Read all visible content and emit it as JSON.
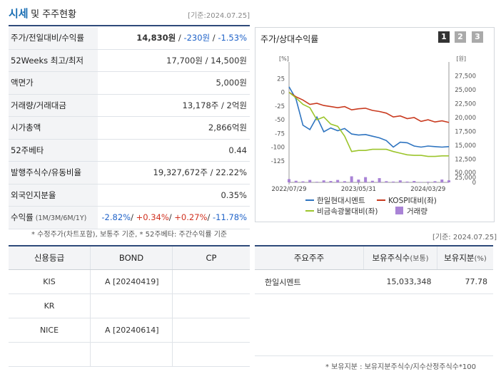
{
  "header": {
    "title_main": "시세",
    "title_rest": "및 주주현황",
    "date": "[기준:2024.07.25]"
  },
  "market_table": [
    {
      "label": "주가/전일대비/수익률",
      "value_parts": [
        {
          "text": "14,830원",
          "cls": "b"
        },
        {
          "text": " / ",
          "cls": ""
        },
        {
          "text": "-230원",
          "cls": "neg"
        },
        {
          "text": " / ",
          "cls": ""
        },
        {
          "text": "-1.53%",
          "cls": "neg"
        }
      ]
    },
    {
      "label": "52Weeks 최고/최저",
      "value_parts": [
        {
          "text": "17,700원 / 14,500원",
          "cls": ""
        }
      ]
    },
    {
      "label": "액면가",
      "value_parts": [
        {
          "text": "5,000원",
          "cls": ""
        }
      ]
    },
    {
      "label": "거래량/거래대금",
      "value_parts": [
        {
          "text": "13,178주 / 2억원",
          "cls": ""
        }
      ]
    },
    {
      "label": "시가총액",
      "value_parts": [
        {
          "text": "2,866억원",
          "cls": ""
        }
      ]
    },
    {
      "label": "52주베타",
      "value_parts": [
        {
          "text": "0.44",
          "cls": ""
        }
      ]
    },
    {
      "label": "발행주식수/유동비율",
      "value_parts": [
        {
          "text": "19,327,672주 / 22.22%",
          "cls": ""
        }
      ]
    },
    {
      "label": "외국인지분율",
      "value_parts": [
        {
          "text": "0.35%",
          "cls": ""
        }
      ]
    },
    {
      "label": "수익률",
      "label_small": "(1M/3M/6M/1Y)",
      "value_parts": [
        {
          "text": "-2.82%",
          "cls": "neg"
        },
        {
          "text": "/ ",
          "cls": ""
        },
        {
          "text": "+0.34%",
          "cls": "pos"
        },
        {
          "text": "/ ",
          "cls": ""
        },
        {
          "text": "+0.27%",
          "cls": "pos"
        },
        {
          "text": "/ ",
          "cls": ""
        },
        {
          "text": "-11.78%",
          "cls": "neg"
        }
      ]
    }
  ],
  "notes": {
    "market_note": "* 수정주가(차트포함), 보통주 기준, * 52주베타: 주간수익률 기준",
    "date_right": "[기준: 2024.07.25]",
    "holder_note": "* 보유지분 : 보유지분주식수/지수산정주식수*100"
  },
  "chart_panel": {
    "title": "주가/상대수익률",
    "pages": [
      "1",
      "2",
      "3"
    ],
    "colors": {
      "hanil": "#2e74c0",
      "kospi": "#c93a1f",
      "nonmetal": "#9cc52c",
      "volume": "#a983d6",
      "page_active": "#333333",
      "page_inactive": "#aaaaaa"
    }
  },
  "chart_data": {
    "type": "line",
    "left_axis": {
      "unit": "[%]",
      "ticks": [
        25,
        0,
        -25,
        -50,
        -75,
        -100,
        -125
      ],
      "range": [
        -137,
        45
      ]
    },
    "right_axis": {
      "unit": "[원]",
      "ticks": [
        "27,500",
        "25,000",
        "22,500",
        "20,000",
        "17,500",
        "15,000",
        "12,500"
      ],
      "tick_values": [
        27500,
        25000,
        22500,
        20000,
        17500,
        15000,
        12500
      ],
      "range": [
        11000,
        29000
      ]
    },
    "volume_axis": {
      "ticks": [
        "50,000",
        "25,000",
        "0"
      ],
      "tick_values": [
        50000,
        25000,
        0
      ],
      "range": [
        0,
        60000
      ]
    },
    "x_labels": [
      "2022/07/29",
      "2023/05/31",
      "2024/03/29"
    ],
    "x": [
      "2022/07/29",
      "2022/09",
      "2022/10",
      "2022/11",
      "2022/12",
      "2023/01",
      "2023/02",
      "2023/03",
      "2023/04",
      "2023/05",
      "2023/06",
      "2023/07",
      "2023/08",
      "2023/09",
      "2023/10",
      "2023/11",
      "2023/12",
      "2024/01",
      "2024/02",
      "2024/03",
      "2024/04",
      "2024/05",
      "2024/06",
      "2024/07"
    ],
    "series": [
      {
        "name": "한일현대시멘트",
        "color_key": "hanil",
        "values": [
          10,
          -12,
          -60,
          -68,
          -45,
          -72,
          -65,
          -70,
          -66,
          -76,
          -78,
          -77,
          -80,
          -83,
          -88,
          -100,
          -91,
          -92,
          -98,
          -100,
          -98,
          -99,
          -100,
          -99
        ]
      },
      {
        "name": "KOSPI대비(좌)",
        "color_key": "kospi",
        "values": [
          0,
          -8,
          -14,
          -22,
          -20,
          -24,
          -26,
          -28,
          -26,
          -32,
          -30,
          -29,
          -33,
          -35,
          -38,
          -45,
          -43,
          -48,
          -46,
          -53,
          -50,
          -54,
          -52,
          -55
        ]
      },
      {
        "name": "비금속광물대비(좌)",
        "color_key": "nonmetal",
        "values": [
          0,
          -10,
          -22,
          -28,
          -50,
          -45,
          -58,
          -62,
          -80,
          -108,
          -106,
          -106,
          -104,
          -104,
          -104,
          -108,
          -111,
          -114,
          -115,
          -115,
          -117,
          -117,
          -116,
          -116
        ]
      }
    ],
    "volume_series": {
      "name": "거래량",
      "color_key": "volume",
      "values": [
        16000,
        8000,
        5000,
        12000,
        3000,
        10000,
        7000,
        12000,
        6000,
        30000,
        14000,
        26000,
        8000,
        21000,
        6000,
        4000,
        10000,
        4000,
        7000,
        2000,
        3000,
        6000,
        14000,
        10000
      ]
    }
  },
  "credit_table": {
    "headers": [
      "신용등급",
      "BOND",
      "CP"
    ],
    "rows": [
      [
        "KIS",
        "A  [20240419]",
        ""
      ],
      [
        "KR",
        "",
        ""
      ],
      [
        "NICE",
        "A  [20240614]",
        ""
      ],
      [
        "",
        "",
        ""
      ]
    ]
  },
  "holder_table": {
    "headers": [
      "주요주주",
      "보유주식수",
      "(보통)",
      "보유지분",
      "(%)"
    ],
    "rows": [
      [
        "한일시멘트",
        "15,033,348",
        "77.78"
      ]
    ]
  }
}
